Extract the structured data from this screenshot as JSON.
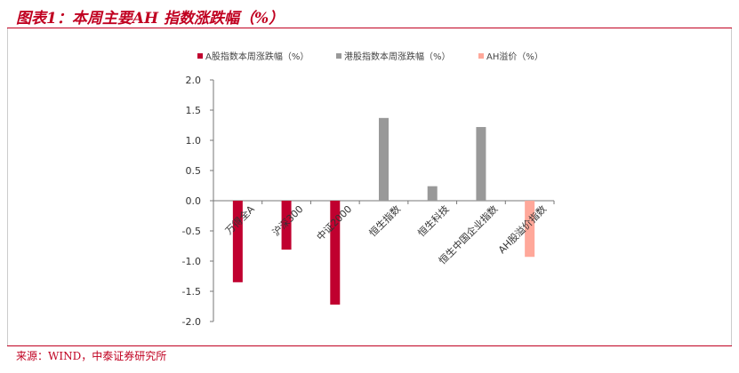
{
  "title": "图表1：本周主要AH 指数涨跌幅（%）",
  "source": "来源：WIND，中泰证券研究所",
  "chart_data": {
    "type": "bar",
    "categories": [
      "万得全A",
      "沪深300",
      "中证2000",
      "恒生指数",
      "恒生科技",
      "恒生中国企业指数",
      "AH股溢价指数"
    ],
    "series": [
      {
        "name": "A股指数本周涨跌幅（%）",
        "color": "#c0002f",
        "values": [
          -1.35,
          -0.81,
          -1.72,
          null,
          null,
          null,
          null
        ]
      },
      {
        "name": "港股指数本周涨跌幅（%）",
        "color": "#999999",
        "values": [
          null,
          null,
          null,
          1.37,
          0.24,
          1.22,
          null
        ]
      },
      {
        "name": "AH溢价（%）",
        "color": "#ffa89a",
        "values": [
          null,
          null,
          null,
          null,
          null,
          null,
          -0.93
        ]
      }
    ],
    "ylim": [
      -2.0,
      2.0
    ],
    "yticks": [
      "2.0",
      "1.5",
      "1.0",
      "0.5",
      "0.0",
      "-0.5",
      "-1.0",
      "-1.5",
      "-2.0"
    ],
    "grid": false,
    "legend": "top"
  }
}
